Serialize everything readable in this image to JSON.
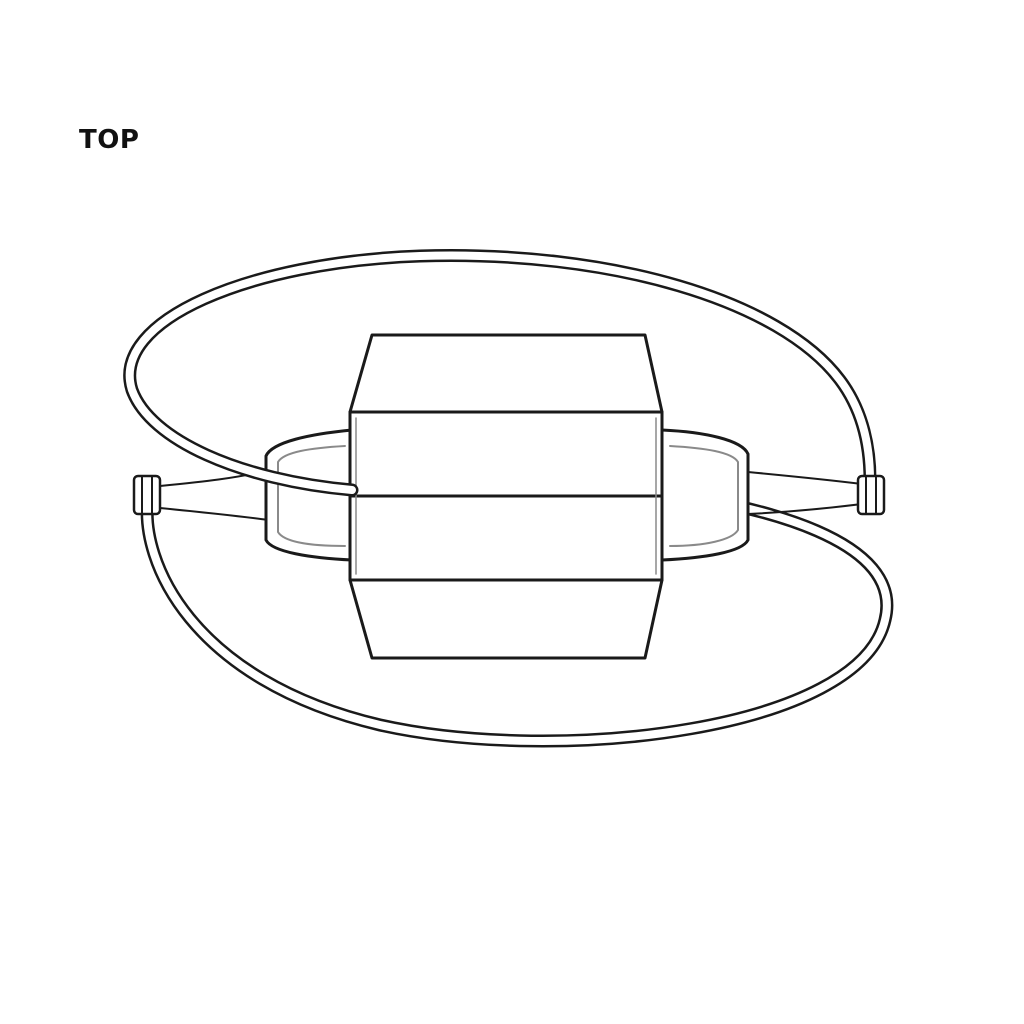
{
  "view": {
    "label": "TOP"
  },
  "colors": {
    "line": "#1a1a1a",
    "shade": "#8a8a8a",
    "background": "#ffffff"
  }
}
